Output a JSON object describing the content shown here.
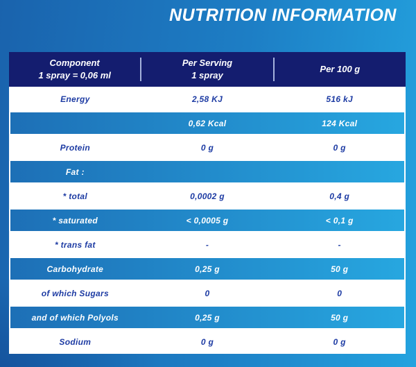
{
  "title": "NUTRITION INFORMATION",
  "table": {
    "header": {
      "col1_line1": "Component",
      "col1_line2": "1 spray = 0,06 ml",
      "col2_line1": "Per Serving",
      "col2_line2": "1 spray",
      "col3": "Per 100 g"
    },
    "rows": [
      {
        "component": "Energy",
        "per_serving": "2,58 KJ",
        "per_100g": "516 kJ",
        "style": "white"
      },
      {
        "component": "",
        "per_serving": "0,62 Kcal",
        "per_100g": "124 Kcal",
        "style": "blue"
      },
      {
        "component": "Protein",
        "per_serving": "0 g",
        "per_100g": "0 g",
        "style": "white"
      },
      {
        "component": "Fat :",
        "per_serving": "",
        "per_100g": "",
        "style": "blue"
      },
      {
        "component": "* total",
        "per_serving": "0,0002 g",
        "per_100g": "0,4 g",
        "style": "white"
      },
      {
        "component": "* saturated",
        "per_serving": "< 0,0005 g",
        "per_100g": "< 0,1 g",
        "style": "blue"
      },
      {
        "component": "* trans fat",
        "per_serving": "-",
        "per_100g": "-",
        "style": "white"
      },
      {
        "component": "Carbohydrate",
        "per_serving": "0,25 g",
        "per_100g": "50 g",
        "style": "blue"
      },
      {
        "component": "of which Sugars",
        "per_serving": "0",
        "per_100g": "0",
        "style": "white"
      },
      {
        "component": "and of which Polyols",
        "per_serving": "0,25 g",
        "per_100g": "50 g",
        "style": "blue"
      },
      {
        "component": "Sodium",
        "per_serving": "0 g",
        "per_100g": "0 g",
        "style": "white"
      }
    ]
  },
  "colors": {
    "page_bg_left": "#1a63ad",
    "page_bg_right": "#23a3df",
    "header_bg": "#141d6f",
    "row_text": "#1d3ba3",
    "blue_row_start": "#1d6fb6",
    "blue_row_end": "#27a7e0"
  }
}
